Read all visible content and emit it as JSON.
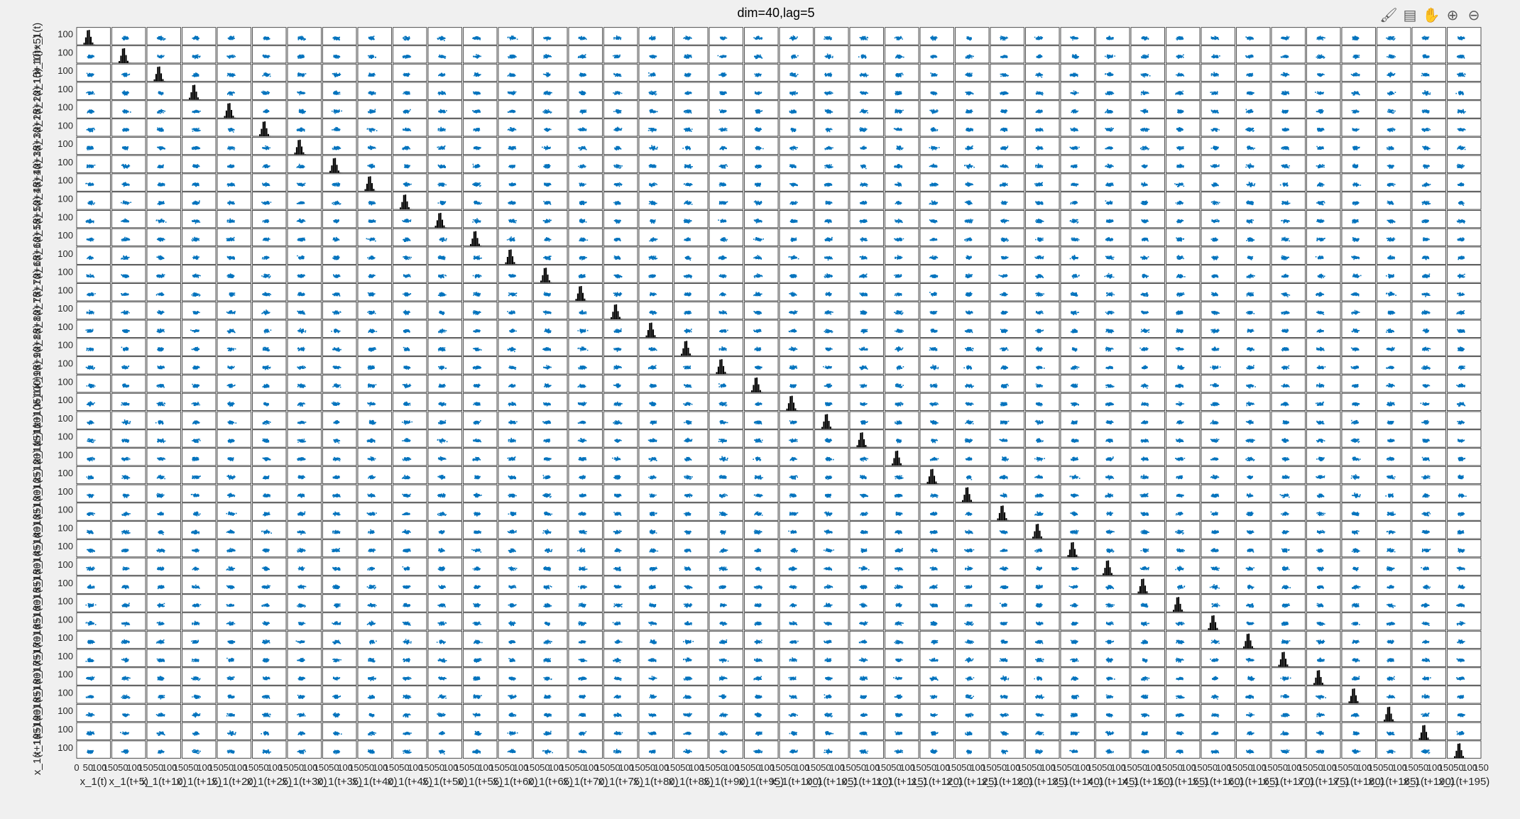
{
  "chart_data": {
    "type": "scatter",
    "title": "dim=40,lag=5",
    "dim": 40,
    "lag": 5,
    "variables": [
      "x_1(t)",
      "x_1(t+5)",
      "x_1(t+10)",
      "x_1(t+15)",
      "x_1(t+20)",
      "x_1(t+25)",
      "x_1(t+30)",
      "x_1(t+35)",
      "x_1(t+40)",
      "x_1(t+45)",
      "x_1(t+50)",
      "x_1(t+55)",
      "x_1(t+60)",
      "x_1(t+65)",
      "x_1(t+70)",
      "x_1(t+75)",
      "x_1(t+80)",
      "x_1(t+85)",
      "x_1(t+90)",
      "x_1(t+95)",
      "x_1(t+100)",
      "x_1(t+105)",
      "x_1(t+110)",
      "x_1(t+115)",
      "x_1(t+120)",
      "x_1(t+125)",
      "x_1(t+130)",
      "x_1(t+135)",
      "x_1(t+140)",
      "x_1(t+145)",
      "x_1(t+150)",
      "x_1(t+155)",
      "x_1(t+160)",
      "x_1(t+165)",
      "x_1(t+170)",
      "x_1(t+175)",
      "x_1(t+180)",
      "x_1(t+185)",
      "x_1(t+190)",
      "x_1(t+195)"
    ],
    "xlim": [
      0,
      150
    ],
    "ylim": [
      0,
      150
    ],
    "x_ticks_first_col": [
      0,
      50,
      100,
      150
    ],
    "x_ticks_other_cols": [
      50,
      100,
      150
    ],
    "y_tick": 100,
    "diagonal": "histogram",
    "off_diagonal": "scatter",
    "scatter_center": [
      60,
      60
    ],
    "scatter_spread": 10,
    "scatter_color": "#0072bd",
    "histogram_color": "#000000",
    "grid": false,
    "legend": "none"
  },
  "toolbar": {
    "icons": [
      "brush-icon",
      "data-tip-icon",
      "pan-hand-icon",
      "zoom-in-icon",
      "zoom-out-icon"
    ],
    "glyphs": [
      "🖌",
      "▤",
      "✋",
      "⊕",
      "⊖"
    ]
  }
}
